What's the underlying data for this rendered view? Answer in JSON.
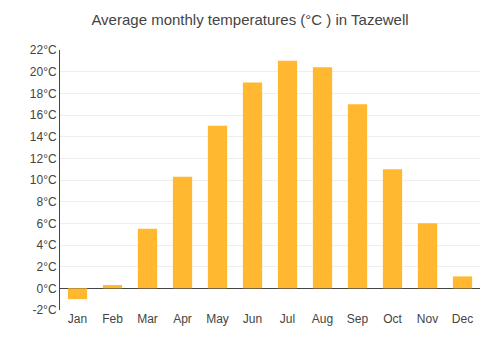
{
  "chart_data": {
    "type": "bar",
    "title": "Average monthly temperatures (°C ) in Tazewell",
    "categories": [
      "Jan",
      "Feb",
      "Mar",
      "Apr",
      "May",
      "Jun",
      "Jul",
      "Aug",
      "Sep",
      "Oct",
      "Nov",
      "Dec"
    ],
    "values": [
      -1.0,
      0.3,
      5.5,
      10.3,
      15.0,
      19.0,
      21.0,
      20.4,
      17.0,
      11.0,
      6.0,
      1.1
    ],
    "color": "#FFB830",
    "ylim": [
      -2,
      22
    ],
    "yticks": [
      {
        "value": -2,
        "label": "-2°C"
      },
      {
        "value": 0,
        "label": "0°C"
      },
      {
        "value": 2,
        "label": "2°C"
      },
      {
        "value": 4,
        "label": "4°C"
      },
      {
        "value": 6,
        "label": "6°C"
      },
      {
        "value": 8,
        "label": "8°C"
      },
      {
        "value": 10,
        "label": "10°C"
      },
      {
        "value": 12,
        "label": "12°C"
      },
      {
        "value": 14,
        "label": "14°C"
      },
      {
        "value": 16,
        "label": "16°C"
      },
      {
        "value": 18,
        "label": "18°C"
      },
      {
        "value": 20,
        "label": "20°C"
      },
      {
        "value": 22,
        "label": "22°C"
      }
    ],
    "grid": true
  }
}
